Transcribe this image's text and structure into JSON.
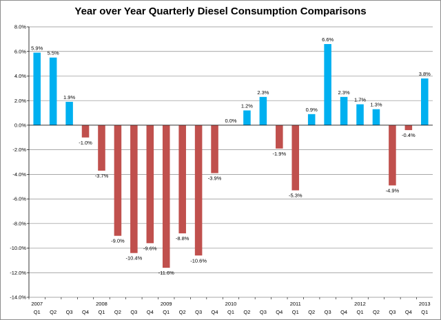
{
  "chart_data": {
    "type": "bar",
    "title": "Year over Year Quarterly Diesel Consumption Comparisons",
    "xlabel": "",
    "ylabel": "",
    "ylim": [
      -14,
      8
    ],
    "y_tick_step": 2,
    "y_tick_labels": [
      "8.0%",
      "6.0%",
      "4.0%",
      "2.0%",
      "0.0%",
      "-2.0%",
      "-4.0%",
      "-6.0%",
      "-8.0%",
      "-10.0%",
      "-12.0%",
      "-14.0%"
    ],
    "grid": true,
    "legend": "none",
    "positive_color": "#00b0f0",
    "negative_color": "#c0504d",
    "categories": [
      {
        "year": "2007",
        "quarter": "Q1"
      },
      {
        "year": "",
        "quarter": "Q2"
      },
      {
        "year": "",
        "quarter": "Q3"
      },
      {
        "year": "",
        "quarter": "Q4"
      },
      {
        "year": "2008",
        "quarter": "Q1"
      },
      {
        "year": "",
        "quarter": "Q2"
      },
      {
        "year": "",
        "quarter": "Q3"
      },
      {
        "year": "",
        "quarter": "Q4"
      },
      {
        "year": "2009",
        "quarter": "Q1"
      },
      {
        "year": "",
        "quarter": "Q2"
      },
      {
        "year": "",
        "quarter": "Q3"
      },
      {
        "year": "",
        "quarter": "Q4"
      },
      {
        "year": "2010",
        "quarter": "Q1"
      },
      {
        "year": "",
        "quarter": "Q2"
      },
      {
        "year": "",
        "quarter": "Q3"
      },
      {
        "year": "",
        "quarter": "Q4"
      },
      {
        "year": "2011",
        "quarter": "Q1"
      },
      {
        "year": "",
        "quarter": "Q2"
      },
      {
        "year": "",
        "quarter": "Q3"
      },
      {
        "year": "",
        "quarter": "Q4"
      },
      {
        "year": "2012",
        "quarter": "Q1"
      },
      {
        "year": "",
        "quarter": "Q2"
      },
      {
        "year": "",
        "quarter": "Q3"
      },
      {
        "year": "",
        "quarter": "Q4"
      },
      {
        "year": "2013",
        "quarter": "Q1"
      }
    ],
    "values": [
      5.9,
      5.5,
      1.9,
      -1.0,
      -3.7,
      -9.0,
      -10.4,
      -9.6,
      -11.6,
      -8.8,
      -10.6,
      -3.9,
      0.0,
      1.2,
      2.3,
      -1.9,
      -5.3,
      0.9,
      6.6,
      2.3,
      1.7,
      1.3,
      -4.9,
      -0.4,
      3.8
    ],
    "data_labels": [
      "5.9%",
      "5.5%",
      "1.9%",
      "-1.0%",
      "-3.7%",
      "-9.0%",
      "-10.4%",
      "-9.6%",
      "-11.6%",
      "-8.8%",
      "-10.6%",
      "-3.9%",
      "0.0%",
      "1.2%",
      "2.3%",
      "-1.9%",
      "-5.3%",
      "0.9%",
      "6.6%",
      "2.3%",
      "1.7%",
      "1.3%",
      "-4.9%",
      "-0.4%",
      "3.8%"
    ]
  }
}
